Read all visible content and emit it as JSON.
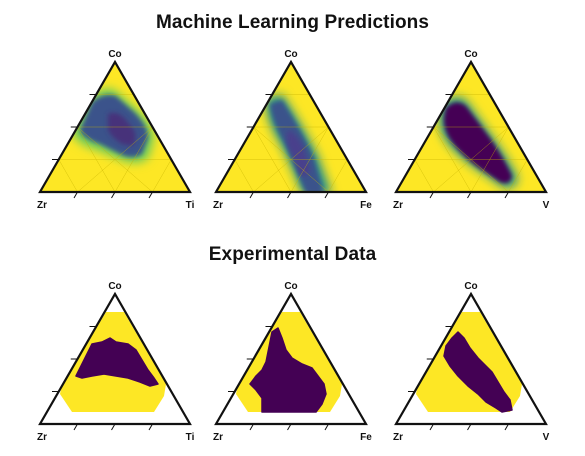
{
  "figure": {
    "rows": [
      {
        "title": "Machine Learning Predictions",
        "panels": [
          {
            "top": "Co",
            "left": "Zr",
            "right": "Ti"
          },
          {
            "top": "Co",
            "left": "Zr",
            "right": "Fe"
          },
          {
            "top": "Co",
            "left": "Zr",
            "right": "V"
          }
        ]
      },
      {
        "title": "Experimental Data",
        "panels": [
          {
            "top": "Co",
            "left": "Zr",
            "right": "Ti"
          },
          {
            "top": "Co",
            "left": "Zr",
            "right": "Fe"
          },
          {
            "top": "Co",
            "left": "Zr",
            "right": "V"
          }
        ]
      }
    ]
  },
  "colors": {
    "yellow": "#fde725",
    "purple": "#440154",
    "dark_blue": "#3b528b",
    "teal": "#21918c",
    "green": "#5ec962",
    "grid": "#c8b400",
    "outline": "#111111",
    "background": "#ffffff"
  }
}
